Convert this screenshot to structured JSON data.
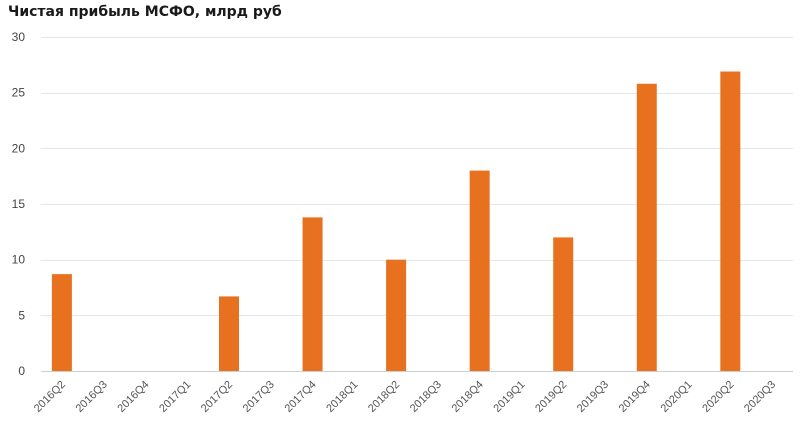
{
  "chart_data": {
    "type": "bar",
    "title": "Чистая прибыль МСФО, млрд руб",
    "categories": [
      "2016Q2",
      "2016Q3",
      "2016Q4",
      "2017Q1",
      "2017Q2",
      "2017Q3",
      "2017Q4",
      "2018Q1",
      "2018Q2",
      "2018Q3",
      "2018Q4",
      "2019Q1",
      "2019Q2",
      "2019Q3",
      "2019Q4",
      "2020Q1",
      "2020Q2",
      "2020Q3"
    ],
    "values": [
      8.7,
      null,
      null,
      null,
      6.7,
      null,
      13.8,
      null,
      10.0,
      null,
      18.0,
      null,
      12.0,
      null,
      25.8,
      null,
      26.9,
      null
    ],
    "yticks": [
      0,
      5,
      10,
      15,
      20,
      25,
      30
    ],
    "ylim": [
      0,
      30
    ],
    "grid": true,
    "bar_color": "#e8711f"
  }
}
